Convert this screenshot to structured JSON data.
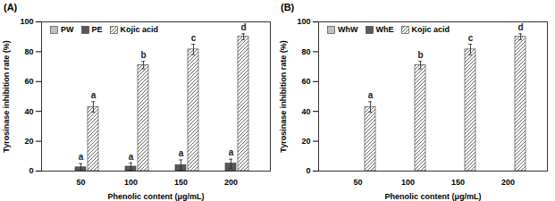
{
  "chart_data": [
    {
      "type": "bar",
      "title": "(A)",
      "categories": [
        "50",
        "100",
        "150",
        "200"
      ],
      "x_label": "Phenolic content (μg/mL)",
      "y_label": "Tyrosinase inhibition rate (%)",
      "ylim": [
        0,
        100
      ],
      "yticks": [
        0,
        20,
        40,
        60,
        80,
        100
      ],
      "grid": false,
      "legend": "top-left",
      "series": [
        {
          "name": "PW",
          "color": "#c0c0c0",
          "values": [
            0,
            0,
            0,
            0
          ]
        },
        {
          "name": "PE",
          "color": "#595959",
          "values": [
            2.5,
            3,
            4,
            5
          ],
          "errors": [
            2.5,
            2.5,
            3.5,
            3
          ],
          "significance": [
            "a",
            "a",
            "a",
            "a"
          ]
        },
        {
          "name": "Kojic acid",
          "color": "#404040",
          "marker": "hatch",
          "values": [
            43,
            71,
            81.5,
            90
          ],
          "errors": [
            3.5,
            2.5,
            3.5,
            2
          ],
          "significance": [
            "a",
            "b",
            "c",
            "d"
          ]
        }
      ]
    },
    {
      "type": "bar",
      "title": "(B)",
      "categories": [
        "50",
        "100",
        "150",
        "200"
      ],
      "x_label": "Phenolic content (μg/mL)",
      "y_label": "Tyrosinase inhibition rate (%)",
      "ylim": [
        0,
        100
      ],
      "yticks": [
        0,
        20,
        40,
        60,
        80,
        100
      ],
      "grid": false,
      "legend": "top-left",
      "series": [
        {
          "name": "WhW",
          "color": "#c0c0c0",
          "values": [
            0,
            0,
            0,
            0
          ]
        },
        {
          "name": "WhE",
          "color": "#595959",
          "values": [
            0,
            0,
            0,
            0
          ]
        },
        {
          "name": "Kojic acid",
          "color": "#404040",
          "marker": "hatch",
          "values": [
            43,
            71,
            81.5,
            90
          ],
          "errors": [
            3.5,
            2.5,
            3.5,
            2
          ],
          "significance": [
            "a",
            "b",
            "c",
            "d"
          ]
        }
      ]
    }
  ]
}
